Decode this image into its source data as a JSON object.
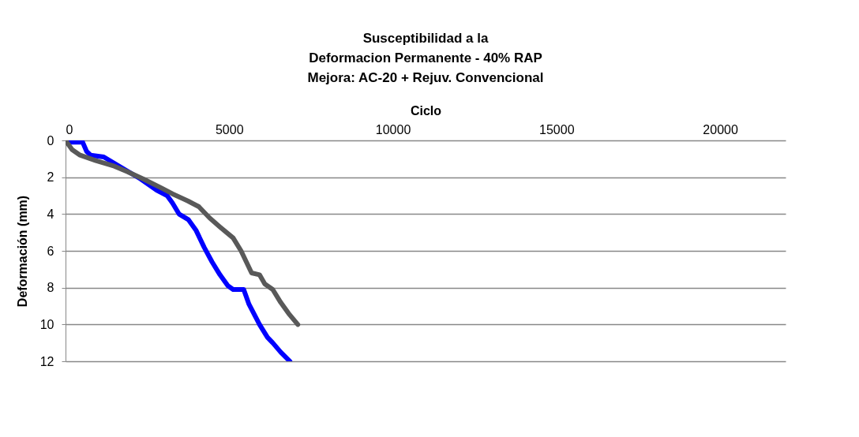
{
  "chart_data": {
    "type": "line",
    "title": "Susceptibilidad a la\nDeformacion Permanente - 40% RAP\nMejora: AC-20 + Rejuv. Convencional",
    "xlabel": "Ciclo",
    "ylabel": "Deformación (mm)",
    "xlim": [
      0,
      22000
    ],
    "xticks": [
      0,
      5000,
      10000,
      15000,
      20000
    ],
    "ylim": [
      12,
      0
    ],
    "yticks": [
      0,
      2,
      4,
      6,
      8,
      10,
      12
    ],
    "grid": "y",
    "marker": "none",
    "line_style": "solid",
    "series": [
      {
        "color": "#0000ff",
        "x": [
          121,
          524,
          645,
          766,
          1169,
          1734,
          2298,
          2782,
          3105,
          3266,
          3468,
          3750,
          3992,
          4234,
          4476,
          4718,
          4960,
          5121,
          5444,
          5605,
          5927,
          6169,
          6331,
          6573,
          6855
        ],
        "values": [
          0.1,
          0.1,
          0.6,
          0.8,
          0.9,
          1.5,
          2.1,
          2.7,
          3.0,
          3.4,
          4.0,
          4.3,
          4.9,
          5.8,
          6.6,
          7.3,
          7.9,
          8.1,
          8.1,
          8.9,
          10.0,
          10.7,
          11.0,
          11.5,
          12.0
        ]
      },
      {
        "color": "#595959",
        "x": [
          0,
          202,
          444,
          927,
          1492,
          1895,
          2379,
          2944,
          3266,
          3750,
          4073,
          4395,
          4718,
          5121,
          5363,
          5685,
          5927,
          6089,
          6331,
          6573,
          6815,
          7097
        ],
        "values": [
          0,
          0.5,
          0.8,
          1.1,
          1.4,
          1.7,
          2.1,
          2.6,
          2.9,
          3.3,
          3.6,
          4.2,
          4.7,
          5.3,
          6.0,
          7.2,
          7.3,
          7.8,
          8.1,
          8.8,
          9.4,
          10.0
        ]
      }
    ]
  }
}
